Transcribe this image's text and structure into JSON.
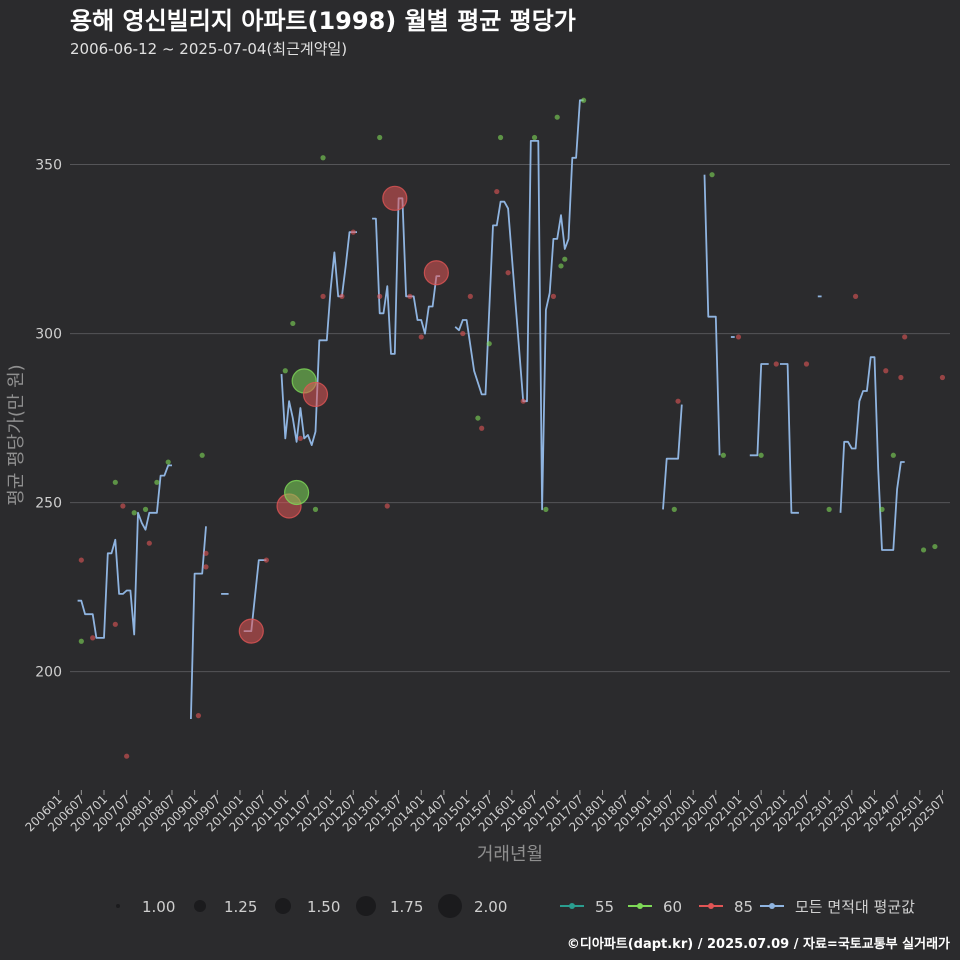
{
  "header": {
    "title": "용해 영신빌리지 아파트(1998) 월별 평균 평당가",
    "subtitle": "2006-06-12 ~ 2025-07-04(최근계약일)"
  },
  "footer": {
    "text": "©디아파트(dapt.kr) / 2025.07.09 / 자료=국토교통부 실거래가"
  },
  "colors": {
    "bg": "#2b2b2d",
    "grid": "#555558",
    "s55": "#2a9d8f",
    "s60": "#7ed957",
    "s85": "#e05555",
    "avg": "#8fb4e0"
  },
  "chart_data": {
    "type": "line",
    "title": "용해 영신빌리지 아파트(1998) 월별 평균 평당가",
    "xlabel": "거래년월",
    "ylabel": "평균 평당가(만 원)",
    "ylim": [
      165,
      375
    ],
    "yticks": [
      200,
      250,
      300,
      350
    ],
    "xrange": [
      "2006-04",
      "2025-09"
    ],
    "x_tick_labels": [
      "200601",
      "200607",
      "200701",
      "200707",
      "200801",
      "200807",
      "200901",
      "200907",
      "201001",
      "201007",
      "201101",
      "201107",
      "201201",
      "201207",
      "201301",
      "201307",
      "201401",
      "201407",
      "201501",
      "201507",
      "201601",
      "201607",
      "201701",
      "201707",
      "201801",
      "201807",
      "201901",
      "201907",
      "202001",
      "202007",
      "202101",
      "202107",
      "202201",
      "202207",
      "202301",
      "202307",
      "202401",
      "202407",
      "202501",
      "202507"
    ],
    "size_legend": [
      "1.00",
      "1.25",
      "1.50",
      "1.75",
      "2.00"
    ],
    "color_legend": [
      {
        "key": "s55",
        "label": "55"
      },
      {
        "key": "s60",
        "label": "60"
      },
      {
        "key": "s85",
        "label": "85"
      },
      {
        "key": "avg",
        "label": "모든 면적대 평균값"
      }
    ],
    "average_line": [
      [
        [
          "2006-06",
          221
        ],
        [
          "2006-07",
          221
        ],
        [
          "2006-08",
          217
        ],
        [
          "2006-10",
          217
        ],
        [
          "2006-11",
          210
        ],
        [
          "2007-01",
          210
        ],
        [
          "2007-02",
          235
        ],
        [
          "2007-03",
          235
        ],
        [
          "2007-04",
          239
        ],
        [
          "2007-05",
          223
        ],
        [
          "2007-06",
          223
        ],
        [
          "2007-07",
          224
        ],
        [
          "2007-08",
          224
        ],
        [
          "2007-09",
          211
        ],
        [
          "2007-10",
          247
        ],
        [
          "2007-11",
          244
        ],
        [
          "2007-12",
          242
        ],
        [
          "2008-01",
          247
        ],
        [
          "2008-03",
          247
        ],
        [
          "2008-04",
          258
        ],
        [
          "2008-05",
          258
        ],
        [
          "2008-06",
          261
        ],
        [
          "2008-07",
          261
        ]
      ],
      [
        [
          "2008-12",
          186
        ],
        [
          "2009-01",
          229
        ],
        [
          "2009-03",
          229
        ],
        [
          "2009-04",
          243
        ]
      ],
      [
        [
          "2009-08",
          223
        ],
        [
          "2009-10",
          223
        ]
      ],
      [
        [
          "2010-02",
          212
        ],
        [
          "2010-04",
          212
        ],
        [
          "2010-06",
          233
        ],
        [
          "2010-08",
          233
        ]
      ],
      [
        [
          "2010-12",
          288
        ],
        [
          "2011-01",
          269
        ],
        [
          "2011-02",
          280
        ],
        [
          "2011-03",
          275
        ],
        [
          "2011-04",
          268
        ],
        [
          "2011-05",
          278
        ],
        [
          "2011-06",
          269
        ],
        [
          "2011-07",
          270
        ],
        [
          "2011-08",
          267
        ],
        [
          "2011-09",
          271
        ],
        [
          "2011-10",
          298
        ],
        [
          "2011-12",
          298
        ],
        [
          "2012-01",
          313
        ],
        [
          "2012-02",
          324
        ],
        [
          "2012-03",
          311
        ],
        [
          "2012-04",
          311
        ],
        [
          "2012-05",
          320
        ],
        [
          "2012-06",
          330
        ],
        [
          "2012-07",
          330
        ],
        [
          "2012-08",
          330
        ]
      ],
      [
        [
          "2012-12",
          334
        ],
        [
          "2013-01",
          334
        ],
        [
          "2013-02",
          306
        ],
        [
          "2013-03",
          306
        ],
        [
          "2013-04",
          314
        ],
        [
          "2013-05",
          294
        ],
        [
          "2013-06",
          294
        ],
        [
          "2013-07",
          340
        ],
        [
          "2013-08",
          340
        ],
        [
          "2013-09",
          311
        ],
        [
          "2013-10",
          311
        ],
        [
          "2013-11",
          311
        ],
        [
          "2013-12",
          304
        ],
        [
          "2014-01",
          304
        ],
        [
          "2014-02",
          300
        ],
        [
          "2014-03",
          308
        ],
        [
          "2014-04",
          308
        ],
        [
          "2014-05",
          317
        ],
        [
          "2014-06",
          317
        ]
      ],
      [
        [
          "2014-10",
          302
        ],
        [
          "2014-11",
          301
        ],
        [
          "2014-12",
          304
        ],
        [
          "2015-01",
          304
        ],
        [
          "2015-03",
          289
        ],
        [
          "2015-05",
          282
        ],
        [
          "2015-06",
          282
        ],
        [
          "2015-08",
          332
        ],
        [
          "2015-09",
          332
        ],
        [
          "2015-10",
          339
        ],
        [
          "2015-11",
          339
        ],
        [
          "2015-12",
          337
        ],
        [
          "2016-04",
          280
        ],
        [
          "2016-05",
          280
        ],
        [
          "2016-06",
          357
        ],
        [
          "2016-07",
          357
        ],
        [
          "2016-08",
          357
        ],
        [
          "2016-09",
          248
        ],
        [
          "2016-10",
          307
        ],
        [
          "2016-11",
          312
        ],
        [
          "2016-12",
          328
        ],
        [
          "2017-01",
          328
        ],
        [
          "2017-02",
          335
        ],
        [
          "2017-03",
          325
        ],
        [
          "2017-04",
          328
        ],
        [
          "2017-05",
          352
        ],
        [
          "2017-06",
          352
        ],
        [
          "2017-07",
          369
        ],
        [
          "2017-08",
          369
        ]
      ],
      [
        [
          "2019-05",
          248
        ],
        [
          "2019-06",
          263
        ],
        [
          "2019-07",
          263
        ],
        [
          "2019-08",
          263
        ],
        [
          "2019-09",
          263
        ],
        [
          "2019-10",
          279
        ]
      ],
      [
        [
          "2020-04",
          347
        ],
        [
          "2020-05",
          305
        ],
        [
          "2020-06",
          305
        ],
        [
          "2020-07",
          305
        ],
        [
          "2020-08",
          264
        ]
      ],
      [
        [
          "2020-11",
          299
        ],
        [
          "2020-12",
          299
        ]
      ],
      [
        [
          "2021-04",
          264
        ],
        [
          "2021-05",
          264
        ],
        [
          "2021-06",
          264
        ],
        [
          "2021-07",
          291
        ],
        [
          "2021-08",
          291
        ],
        [
          "2021-09",
          291
        ]
      ],
      [
        [
          "2021-12",
          291
        ],
        [
          "2022-01",
          291
        ],
        [
          "2022-02",
          291
        ],
        [
          "2022-03",
          247
        ],
        [
          "2022-04",
          247
        ],
        [
          "2022-05",
          247
        ]
      ],
      [
        [
          "2022-10",
          311
        ],
        [
          "2022-11",
          311
        ]
      ],
      [
        [
          "2023-04",
          247
        ],
        [
          "2023-05",
          268
        ],
        [
          "2023-06",
          268
        ],
        [
          "2023-07",
          266
        ],
        [
          "2023-08",
          266
        ],
        [
          "2023-09",
          280
        ],
        [
          "2023-10",
          283
        ],
        [
          "2023-11",
          283
        ],
        [
          "2023-12",
          293
        ],
        [
          "2024-01",
          293
        ],
        [
          "2024-02",
          260
        ],
        [
          "2024-03",
          236
        ],
        [
          "2024-04",
          236
        ],
        [
          "2024-05",
          236
        ],
        [
          "2024-06",
          236
        ],
        [
          "2024-07",
          254
        ],
        [
          "2024-08",
          262
        ],
        [
          "2024-09",
          262
        ]
      ]
    ],
    "points": [
      {
        "x": "2006-07",
        "y": 233,
        "s": "s85",
        "size": 1.0
      },
      {
        "x": "2006-07",
        "y": 209,
        "s": "s60",
        "size": 1.0
      },
      {
        "x": "2006-10",
        "y": 210,
        "s": "s85",
        "size": 1.0
      },
      {
        "x": "2007-04",
        "y": 256,
        "s": "s60",
        "size": 1.0
      },
      {
        "x": "2007-04",
        "y": 214,
        "s": "s85",
        "size": 1.0
      },
      {
        "x": "2007-06",
        "y": 249,
        "s": "s85",
        "size": 1.0
      },
      {
        "x": "2007-07",
        "y": 175,
        "s": "s85",
        "size": 1.0
      },
      {
        "x": "2007-09",
        "y": 247,
        "s": "s60",
        "size": 1.0
      },
      {
        "x": "2007-12",
        "y": 248,
        "s": "s60",
        "size": 1.0
      },
      {
        "x": "2008-01",
        "y": 238,
        "s": "s85",
        "size": 1.0
      },
      {
        "x": "2008-03",
        "y": 256,
        "s": "s60",
        "size": 1.0
      },
      {
        "x": "2008-06",
        "y": 262,
        "s": "s60",
        "size": 1.0
      },
      {
        "x": "2009-02",
        "y": 187,
        "s": "s85",
        "size": 1.0
      },
      {
        "x": "2009-03",
        "y": 264,
        "s": "s60",
        "size": 1.0
      },
      {
        "x": "2009-04",
        "y": 235,
        "s": "s85",
        "size": 1.0
      },
      {
        "x": "2009-04",
        "y": 231,
        "s": "s85",
        "size": 1.0
      },
      {
        "x": "2010-04",
        "y": 212,
        "s": "s85",
        "size": 2.0
      },
      {
        "x": "2010-08",
        "y": 233,
        "s": "s85",
        "size": 1.0
      },
      {
        "x": "2011-01",
        "y": 289,
        "s": "s60",
        "size": 1.0
      },
      {
        "x": "2011-02",
        "y": 249,
        "s": "s85",
        "size": 2.0
      },
      {
        "x": "2011-03",
        "y": 303,
        "s": "s60",
        "size": 1.0
      },
      {
        "x": "2011-04",
        "y": 253,
        "s": "s60",
        "size": 2.0
      },
      {
        "x": "2011-05",
        "y": 269,
        "s": "s85",
        "size": 1.0
      },
      {
        "x": "2011-06",
        "y": 286,
        "s": "s60",
        "size": 2.0
      },
      {
        "x": "2011-09",
        "y": 248,
        "s": "s60",
        "size": 1.0
      },
      {
        "x": "2011-09",
        "y": 282,
        "s": "s85",
        "size": 2.0
      },
      {
        "x": "2011-11",
        "y": 352,
        "s": "s60",
        "size": 1.0
      },
      {
        "x": "2011-11",
        "y": 311,
        "s": "s85",
        "size": 1.0
      },
      {
        "x": "2012-04",
        "y": 311,
        "s": "s85",
        "size": 1.0
      },
      {
        "x": "2012-07",
        "y": 330,
        "s": "s85",
        "size": 1.0
      },
      {
        "x": "2013-02",
        "y": 358,
        "s": "s60",
        "size": 1.0
      },
      {
        "x": "2013-02",
        "y": 311,
        "s": "s85",
        "size": 1.0
      },
      {
        "x": "2013-04",
        "y": 249,
        "s": "s85",
        "size": 1.0
      },
      {
        "x": "2013-06",
        "y": 340,
        "s": "s85",
        "size": 2.0
      },
      {
        "x": "2013-10",
        "y": 311,
        "s": "s85",
        "size": 1.0
      },
      {
        "x": "2014-01",
        "y": 299,
        "s": "s85",
        "size": 1.0
      },
      {
        "x": "2014-05",
        "y": 318,
        "s": "s85",
        "size": 2.0
      },
      {
        "x": "2014-12",
        "y": 300,
        "s": "s85",
        "size": 1.0
      },
      {
        "x": "2015-02",
        "y": 311,
        "s": "s85",
        "size": 1.0
      },
      {
        "x": "2015-04",
        "y": 275,
        "s": "s60",
        "size": 1.0
      },
      {
        "x": "2015-05",
        "y": 272,
        "s": "s85",
        "size": 1.0
      },
      {
        "x": "2015-07",
        "y": 297,
        "s": "s60",
        "size": 1.0
      },
      {
        "x": "2015-09",
        "y": 342,
        "s": "s85",
        "size": 1.0
      },
      {
        "x": "2015-10",
        "y": 358,
        "s": "s60",
        "size": 1.0
      },
      {
        "x": "2015-12",
        "y": 318,
        "s": "s85",
        "size": 1.0
      },
      {
        "x": "2016-04",
        "y": 280,
        "s": "s85",
        "size": 1.0
      },
      {
        "x": "2016-07",
        "y": 358,
        "s": "s60",
        "size": 1.0
      },
      {
        "x": "2016-10",
        "y": 248,
        "s": "s60",
        "size": 1.0
      },
      {
        "x": "2016-12",
        "y": 311,
        "s": "s85",
        "size": 1.0
      },
      {
        "x": "2017-01",
        "y": 364,
        "s": "s60",
        "size": 1.0
      },
      {
        "x": "2017-02",
        "y": 320,
        "s": "s60",
        "size": 1.0
      },
      {
        "x": "2017-03",
        "y": 322,
        "s": "s60",
        "size": 1.0
      },
      {
        "x": "2017-08",
        "y": 369,
        "s": "s60",
        "size": 1.0
      },
      {
        "x": "2019-08",
        "y": 248,
        "s": "s60",
        "size": 1.0
      },
      {
        "x": "2019-09",
        "y": 280,
        "s": "s85",
        "size": 1.0
      },
      {
        "x": "2020-06",
        "y": 347,
        "s": "s60",
        "size": 1.0
      },
      {
        "x": "2020-09",
        "y": 264,
        "s": "s60",
        "size": 1.0
      },
      {
        "x": "2021-01",
        "y": 299,
        "s": "s85",
        "size": 1.0
      },
      {
        "x": "2021-07",
        "y": 264,
        "s": "s60",
        "size": 1.0
      },
      {
        "x": "2021-11",
        "y": 291,
        "s": "s85",
        "size": 1.0
      },
      {
        "x": "2022-07",
        "y": 291,
        "s": "s85",
        "size": 1.0
      },
      {
        "x": "2023-01",
        "y": 248,
        "s": "s60",
        "size": 1.0
      },
      {
        "x": "2023-08",
        "y": 311,
        "s": "s85",
        "size": 1.0
      },
      {
        "x": "2024-03",
        "y": 248,
        "s": "s60",
        "size": 1.0
      },
      {
        "x": "2024-04",
        "y": 289,
        "s": "s85",
        "size": 1.0
      },
      {
        "x": "2024-06",
        "y": 264,
        "s": "s60",
        "size": 1.0
      },
      {
        "x": "2024-08",
        "y": 287,
        "s": "s85",
        "size": 1.0
      },
      {
        "x": "2024-09",
        "y": 299,
        "s": "s85",
        "size": 1.0
      },
      {
        "x": "2025-02",
        "y": 236,
        "s": "s60",
        "size": 1.0
      },
      {
        "x": "2025-05",
        "y": 237,
        "s": "s60",
        "size": 1.0
      },
      {
        "x": "2025-07",
        "y": 287,
        "s": "s85",
        "size": 1.0
      }
    ]
  }
}
